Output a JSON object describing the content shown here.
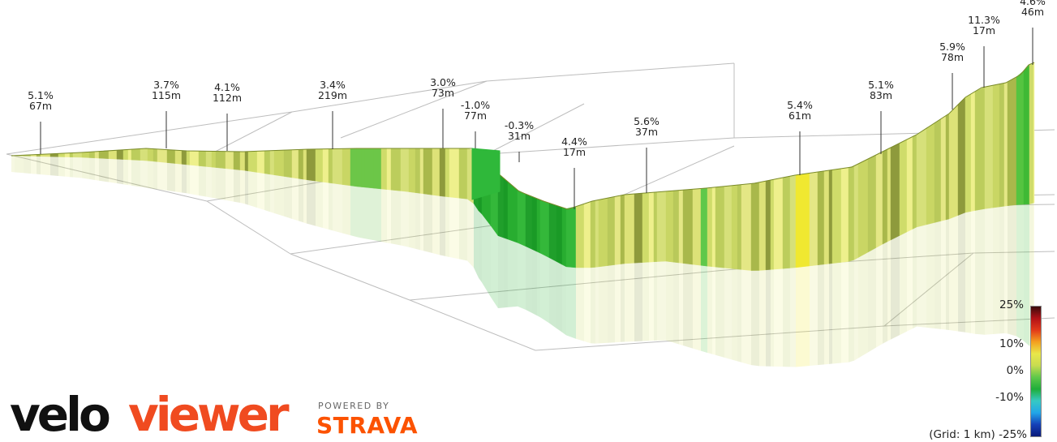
{
  "chart_data": {
    "type": "area",
    "title": "",
    "xlabel": "",
    "ylabel": "",
    "grid": true,
    "grid_note": "(Grid: 1 km)",
    "legend_placement": "bottom-right",
    "colorscale": {
      "min": -25,
      "max": 25,
      "ticks": [
        "25%",
        "10%",
        "0%",
        "-10%",
        "-25%"
      ],
      "colors": [
        "#3a0c0c",
        "#b31218",
        "#e23a1a",
        "#f4a020",
        "#e9e74a",
        "#c8dc50",
        "#5fc84a",
        "#1fae3a",
        "#37c9c4",
        "#22a6e8",
        "#1540b8",
        "#0a1a7a"
      ]
    },
    "segments": [
      {
        "grade": "5.1%",
        "length": "67m"
      },
      {
        "grade": "3.7%",
        "length": "115m"
      },
      {
        "grade": "4.1%",
        "length": "112m"
      },
      {
        "grade": "3.4%",
        "length": "219m"
      },
      {
        "grade": "3.0%",
        "length": "73m"
      },
      {
        "grade": "-1.0%",
        "length": "77m"
      },
      {
        "grade": "-0.3%",
        "length": "31m"
      },
      {
        "grade": "4.4%",
        "length": "17m"
      },
      {
        "grade": "5.6%",
        "length": "37m"
      },
      {
        "grade": "5.4%",
        "length": "61m"
      },
      {
        "grade": "5.1%",
        "length": "83m"
      },
      {
        "grade": "5.9%",
        "length": "78m"
      },
      {
        "grade": "11.3%",
        "length": "17m"
      },
      {
        "grade": "4.6%",
        "length": "46m"
      }
    ]
  },
  "branding": {
    "velo": "velo",
    "viewer": "viewer",
    "powered_by": "POWERED BY",
    "strava": "STRAVA"
  }
}
